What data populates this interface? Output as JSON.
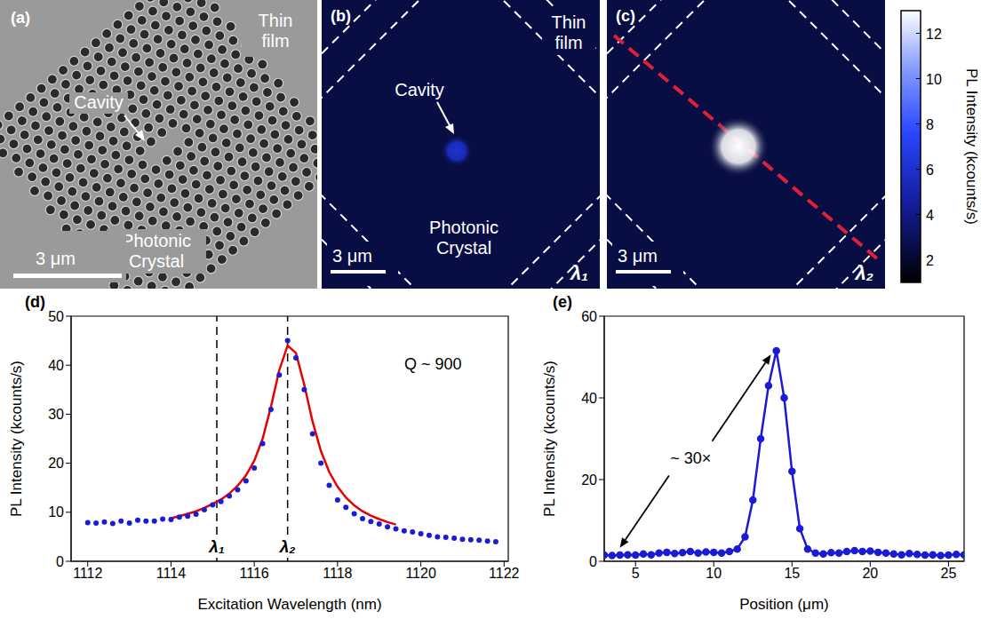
{
  "chart_data": [
    {
      "type": "sem_image",
      "panel": "(a)",
      "labels": {
        "film": "Thin film",
        "cavity": "Cavity",
        "crystal": "Photonic Crystal"
      },
      "scale_bar": "3 μm"
    },
    {
      "type": "pl_map",
      "panel": "(b)",
      "labels": {
        "film": "Thin film",
        "cavity": "Cavity",
        "crystal": "Photonic Crystal"
      },
      "scale_bar": "3 μm",
      "wavelength": "λ₁",
      "background": 2.5,
      "cavity_peak": 6
    },
    {
      "type": "pl_map",
      "panel": "(c)",
      "scale_bar": "3 μm",
      "wavelength": "λ₂",
      "background": 2.5,
      "cavity_peak": 13
    },
    {
      "type": "colorbar",
      "label": "PL Intensity (kcounts/s)",
      "range": [
        1,
        13
      ],
      "ticks": [
        2,
        4,
        6,
        8,
        10,
        12
      ]
    },
    {
      "type": "line",
      "panel": "(d)",
      "x_label": "Excitation Wavelength (nm)",
      "y_label": "PL Intensity (kcounts/s)",
      "xlim": [
        1111.6,
        1122.1
      ],
      "xticks": [
        1112,
        1114,
        1116,
        1118,
        1120,
        1122
      ],
      "ylim": [
        0,
        50
      ],
      "yticks": [
        0,
        10,
        20,
        30,
        40,
        50
      ],
      "annotation": "Q ~ 900",
      "markers": [
        {
          "label": "λ₁",
          "x": 1115.1
        },
        {
          "label": "λ₂",
          "x": 1116.8
        }
      ],
      "series": [
        {
          "type": "scatter",
          "color": "#1b1bd6",
          "marker": "circle",
          "x": [
            1112.0,
            1112.2,
            1112.4,
            1112.6,
            1112.8,
            1113.0,
            1113.2,
            1113.4,
            1113.6,
            1113.8,
            1114.0,
            1114.2,
            1114.4,
            1114.6,
            1114.8,
            1115.0,
            1115.2,
            1115.4,
            1115.6,
            1115.8,
            1116.0,
            1116.2,
            1116.4,
            1116.6,
            1116.8,
            1117.0,
            1117.2,
            1117.4,
            1117.6,
            1117.8,
            1118.0,
            1118.2,
            1118.4,
            1118.6,
            1118.8,
            1119.0,
            1119.2,
            1119.4,
            1119.6,
            1119.8,
            1120.0,
            1120.2,
            1120.4,
            1120.6,
            1120.8,
            1121.0,
            1121.2,
            1121.4,
            1121.6,
            1121.8
          ],
          "values": [
            7.9,
            7.8,
            8.0,
            7.7,
            8.2,
            7.8,
            8.4,
            8.2,
            8.2,
            8.6,
            8.5,
            9.0,
            9.2,
            9.6,
            10.5,
            11.5,
            12.2,
            13.3,
            14.6,
            16.4,
            19.0,
            24.0,
            31.0,
            38.0,
            45.0,
            41.5,
            35.0,
            26.0,
            20.0,
            15.5,
            12.5,
            11.0,
            9.7,
            8.7,
            8.1,
            7.6,
            7.0,
            6.6,
            6.2,
            6.0,
            5.6,
            5.3,
            5.0,
            4.9,
            4.7,
            4.5,
            4.4,
            4.3,
            4.1,
            4.0
          ]
        },
        {
          "type": "line",
          "color": "#e60000",
          "line_style": "solid",
          "x": [
            1114.0,
            1114.2,
            1114.4,
            1114.6,
            1114.8,
            1115.0,
            1115.2,
            1115.4,
            1115.6,
            1115.8,
            1116.0,
            1116.2,
            1116.4,
            1116.6,
            1116.8,
            1117.0,
            1117.2,
            1117.4,
            1117.6,
            1117.8,
            1118.0,
            1118.2,
            1118.4,
            1118.6,
            1118.8,
            1119.0,
            1119.2,
            1119.4
          ],
          "values": [
            8.8,
            9.2,
            9.7,
            10.2,
            10.9,
            11.7,
            12.6,
            13.8,
            15.4,
            17.5,
            20.5,
            25.0,
            31.5,
            39.0,
            44.0,
            42.5,
            36.0,
            28.5,
            22.5,
            18.2,
            15.2,
            13.0,
            11.4,
            10.2,
            9.3,
            8.6,
            8.0,
            7.5
          ]
        }
      ]
    },
    {
      "type": "line",
      "panel": "(e)",
      "x_label": "Position (μm)",
      "y_label": "PL Intensity (kcounts/s)",
      "xlim": [
        3,
        26
      ],
      "xticks": [
        5,
        10,
        15,
        20,
        25
      ],
      "ylim": [
        0,
        60
      ],
      "yticks": [
        0,
        20,
        40,
        60
      ],
      "annotation": "~ 30×",
      "series": [
        {
          "type": "line",
          "color": "#1b1bd6",
          "marker": "circle",
          "line_style": "solid",
          "x": [
            3.0,
            3.5,
            4.0,
            4.5,
            5.0,
            5.5,
            6.0,
            6.5,
            7.0,
            7.5,
            8.0,
            8.5,
            9.0,
            9.5,
            10.0,
            10.5,
            11.0,
            11.5,
            12.0,
            12.5,
            13.0,
            13.5,
            14.0,
            14.5,
            15.0,
            15.5,
            16.0,
            16.5,
            17.0,
            17.5,
            18.0,
            18.5,
            19.0,
            19.5,
            20.0,
            20.5,
            21.0,
            21.5,
            22.0,
            22.5,
            23.0,
            23.5,
            24.0,
            24.5,
            25.0,
            25.5,
            26.0
          ],
          "values": [
            1.5,
            1.4,
            1.5,
            1.6,
            1.5,
            1.8,
            1.6,
            2.0,
            2.2,
            1.9,
            2.1,
            2.4,
            2.0,
            2.3,
            2.2,
            2.0,
            2.4,
            3.0,
            6.0,
            15.0,
            30.0,
            43.0,
            51.5,
            40.0,
            22.0,
            8.0,
            3.0,
            2.0,
            1.8,
            2.1,
            2.0,
            2.4,
            2.6,
            2.4,
            2.5,
            2.2,
            2.0,
            1.8,
            1.6,
            1.9,
            1.7,
            1.5,
            1.6,
            1.4,
            1.5,
            1.7,
            1.6
          ]
        }
      ]
    }
  ]
}
